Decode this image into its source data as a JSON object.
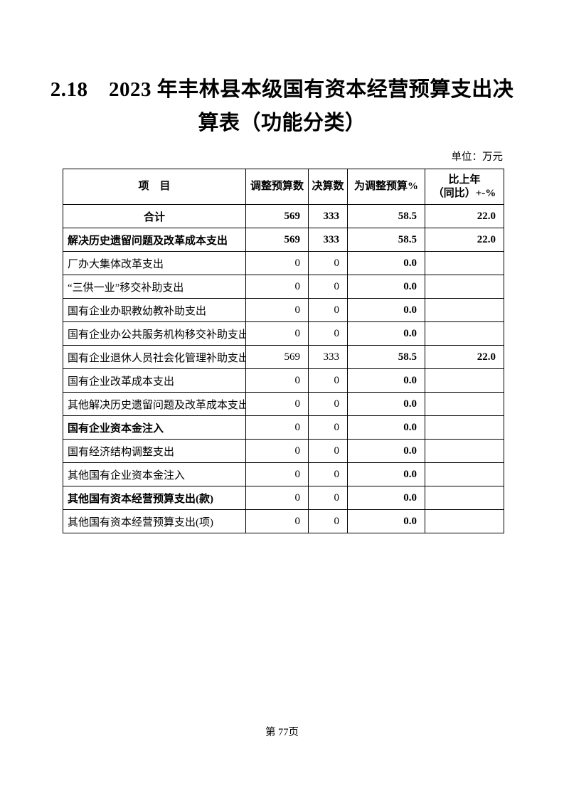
{
  "document": {
    "title_line1": "2.18　2023 年丰林县本级国有资本经营预算支出决",
    "title_line2": "算表（功能分类）",
    "unit_label": "单位：万元",
    "page_footer": "第 77页"
  },
  "table": {
    "headers": {
      "item": "项　目",
      "adjusted_budget": "调整预算数",
      "final_accounts": "决算数",
      "pct_of_adjusted": "为调整预算%",
      "yoy_line1": "比上年",
      "yoy_line2": "（同比）+-%"
    },
    "rows": [
      {
        "label": "合计",
        "adjusted": "569",
        "final": "333",
        "pct": "58.5",
        "yoy": "22.0",
        "row_bold": true,
        "label_center": true
      },
      {
        "label": "解决历史遗留问题及改革成本支出",
        "adjusted": "569",
        "final": "333",
        "pct": "58.5",
        "yoy": "22.0",
        "row_bold": true
      },
      {
        "label": "厂办大集体改革支出",
        "adjusted": "0",
        "final": "0",
        "pct": "0.0",
        "yoy": ""
      },
      {
        "label": "“三供一业”移交补助支出",
        "adjusted": "0",
        "final": "0",
        "pct": "0.0",
        "yoy": ""
      },
      {
        "label": "国有企业办职教幼教补助支出",
        "adjusted": "0",
        "final": "0",
        "pct": "0.0",
        "yoy": ""
      },
      {
        "label": "国有企业办公共服务机构移交补助支出",
        "adjusted": "0",
        "final": "0",
        "pct": "0.0",
        "yoy": ""
      },
      {
        "label": "国有企业退休人员社会化管理补助支出",
        "adjusted": "569",
        "final": "333",
        "pct": "58.5",
        "yoy": "22.0"
      },
      {
        "label": "国有企业改革成本支出",
        "adjusted": "0",
        "final": "0",
        "pct": "0.0",
        "yoy": ""
      },
      {
        "label": "其他解决历史遗留问题及改革成本支出",
        "adjusted": "0",
        "final": "0",
        "pct": "0.0",
        "yoy": ""
      },
      {
        "label": "国有企业资本金注入",
        "adjusted": "0",
        "final": "0",
        "pct": "0.0",
        "yoy": "",
        "label_bold": true
      },
      {
        "label": "国有经济结构调整支出",
        "adjusted": "0",
        "final": "0",
        "pct": "0.0",
        "yoy": ""
      },
      {
        "label": "其他国有企业资本金注入",
        "adjusted": "0",
        "final": "0",
        "pct": "0.0",
        "yoy": ""
      },
      {
        "label": "其他国有资本经营预算支出(款)",
        "adjusted": "0",
        "final": "0",
        "pct": "0.0",
        "yoy": "",
        "label_bold": true
      },
      {
        "label": "其他国有资本经营预算支出(项)",
        "adjusted": "0",
        "final": "0",
        "pct": "0.0",
        "yoy": ""
      }
    ]
  }
}
